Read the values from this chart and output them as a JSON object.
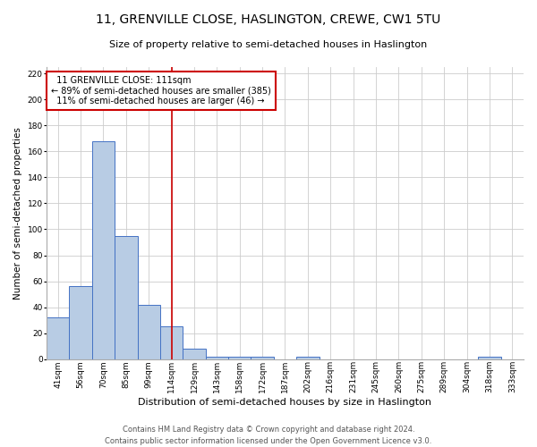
{
  "title_line1": "11, GRENVILLE CLOSE, HASLINGTON, CREWE, CW1 5TU",
  "title_line2": "Size of property relative to semi-detached houses in Haslington",
  "xlabel": "Distribution of semi-detached houses by size in Haslington",
  "ylabel": "Number of semi-detached properties",
  "categories": [
    "41sqm",
    "56sqm",
    "70sqm",
    "85sqm",
    "99sqm",
    "114sqm",
    "129sqm",
    "143sqm",
    "158sqm",
    "172sqm",
    "187sqm",
    "202sqm",
    "216sqm",
    "231sqm",
    "245sqm",
    "260sqm",
    "275sqm",
    "289sqm",
    "304sqm",
    "318sqm",
    "333sqm"
  ],
  "values": [
    32,
    56,
    168,
    95,
    42,
    25,
    8,
    2,
    2,
    2,
    0,
    2,
    0,
    0,
    0,
    0,
    0,
    0,
    0,
    2,
    0
  ],
  "bar_color": "#b8cce4",
  "bar_edgecolor": "#4472c4",
  "property_line_x": 5,
  "annotation_line1": "  11 GRENVILLE CLOSE: 111sqm",
  "annotation_line2": "← 89% of semi-detached houses are smaller (385)",
  "annotation_line3": "  11% of semi-detached houses are larger (46) →",
  "annotation_box_color": "#ffffff",
  "annotation_box_edgecolor": "#cc0000",
  "red_line_color": "#cc0000",
  "ylim": [
    0,
    225
  ],
  "yticks": [
    0,
    20,
    40,
    60,
    80,
    100,
    120,
    140,
    160,
    180,
    200,
    220
  ],
  "footer_line1": "Contains HM Land Registry data © Crown copyright and database right 2024.",
  "footer_line2": "Contains public sector information licensed under the Open Government Licence v3.0.",
  "background_color": "#ffffff",
  "grid_color": "#cccccc",
  "title1_fontsize": 10,
  "title2_fontsize": 8,
  "ylabel_fontsize": 7.5,
  "xlabel_fontsize": 8,
  "tick_fontsize": 6.5,
  "annot_fontsize": 7,
  "footer_fontsize": 6
}
